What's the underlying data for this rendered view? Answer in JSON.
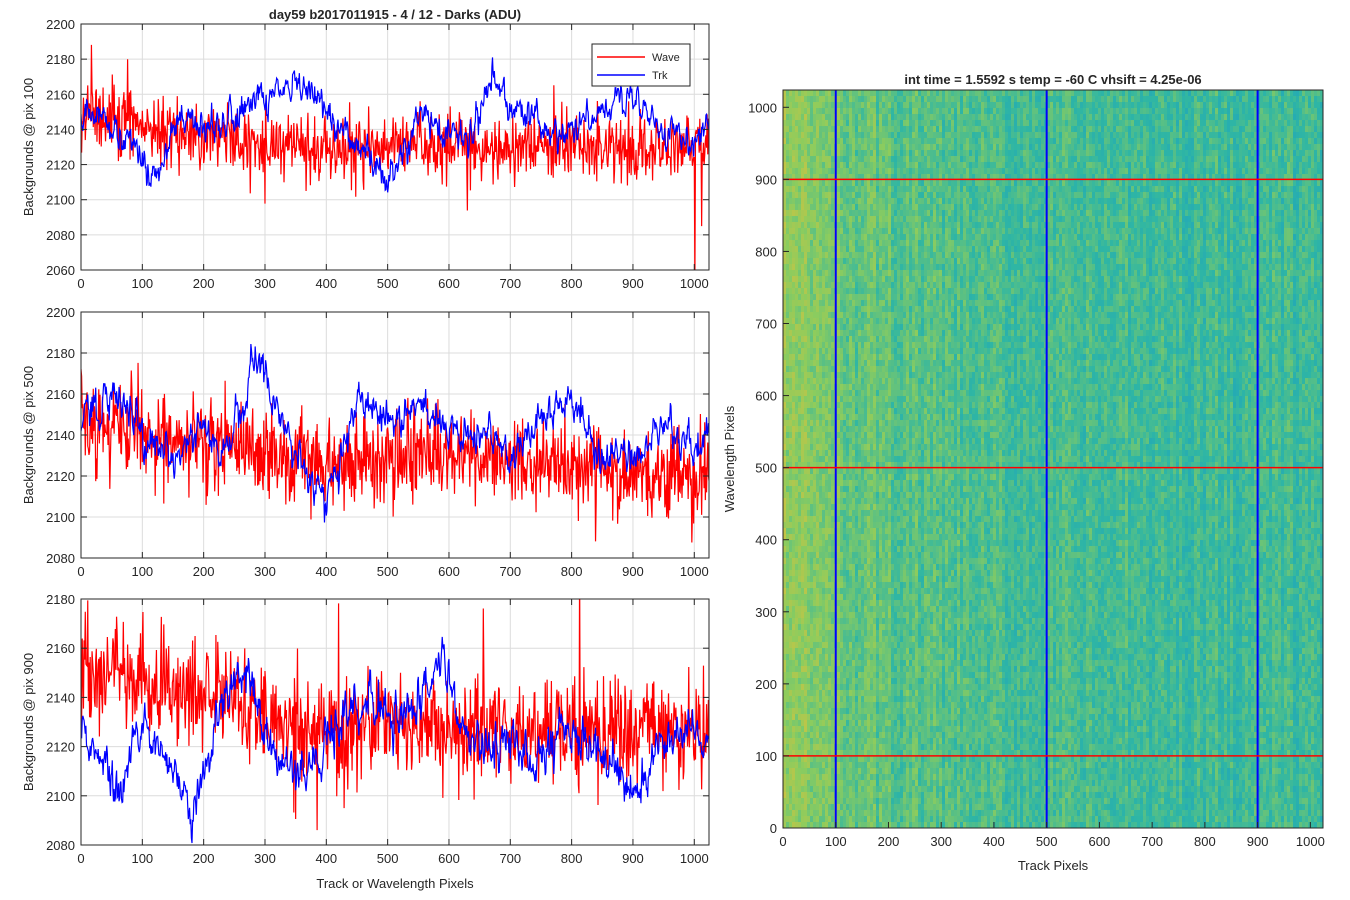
{
  "figure_title": "day59 b2017011915 - 4 / 12 - Darks (ADU)",
  "heatmap_title": "int time = 1.5592 s    temp = -60 C    vhsift = 4.25e-06",
  "colors": {
    "wave": "#ff0000",
    "trk": "#0000ff",
    "grid": "#dcdcdc",
    "axis": "#262626"
  },
  "chart_data": [
    {
      "type": "line",
      "ylabel": "Backgrounds @ pix 100",
      "xlabel": "",
      "xlim": [
        0,
        1024
      ],
      "ylim": [
        2060,
        2200
      ],
      "xticks": [
        0,
        100,
        200,
        300,
        400,
        500,
        600,
        700,
        800,
        900,
        1000
      ],
      "yticks": [
        2060,
        2080,
        2100,
        2120,
        2140,
        2160,
        2180,
        2200
      ],
      "grid": true,
      "legend": {
        "placement": "top-right",
        "entries": [
          "Wave",
          "Trk"
        ]
      },
      "series": [
        {
          "name": "Wave",
          "color": "#ff0000",
          "mean": 2135,
          "noise": 12,
          "anchors": [
            [
              0,
              2150
            ],
            [
              50,
              2148
            ],
            [
              100,
              2142
            ],
            [
              200,
              2136
            ],
            [
              300,
              2132
            ],
            [
              400,
              2128
            ],
            [
              500,
              2130
            ],
            [
              600,
              2132
            ],
            [
              700,
              2130
            ],
            [
              800,
              2132
            ],
            [
              900,
              2130
            ],
            [
              1024,
              2130
            ]
          ]
        },
        {
          "name": "Trk",
          "color": "#0000ff",
          "mean": 2140,
          "noise": 5,
          "anchors": [
            [
              0,
              2150
            ],
            [
              30,
              2145
            ],
            [
              60,
              2140
            ],
            [
              90,
              2130
            ],
            [
              110,
              2112
            ],
            [
              130,
              2122
            ],
            [
              150,
              2143
            ],
            [
              200,
              2140
            ],
            [
              250,
              2146
            ],
            [
              280,
              2158
            ],
            [
              300,
              2155
            ],
            [
              350,
              2165
            ],
            [
              400,
              2150
            ],
            [
              450,
              2132
            ],
            [
              480,
              2120
            ],
            [
              500,
              2108
            ],
            [
              530,
              2130
            ],
            [
              560,
              2148
            ],
            [
              600,
              2135
            ],
            [
              640,
              2140
            ],
            [
              670,
              2172
            ],
            [
              700,
              2152
            ],
            [
              750,
              2140
            ],
            [
              800,
              2138
            ],
            [
              850,
              2150
            ],
            [
              900,
              2158
            ],
            [
              950,
              2140
            ],
            [
              1000,
              2130
            ],
            [
              1024,
              2145
            ]
          ]
        }
      ]
    },
    {
      "type": "line",
      "ylabel": "Backgrounds @ pix 500",
      "xlabel": "",
      "xlim": [
        0,
        1024
      ],
      "ylim": [
        2080,
        2200
      ],
      "xticks": [
        0,
        100,
        200,
        300,
        400,
        500,
        600,
        700,
        800,
        900,
        1000
      ],
      "yticks": [
        2080,
        2100,
        2120,
        2140,
        2160,
        2180,
        2200
      ],
      "grid": true,
      "series": [
        {
          "name": "Wave",
          "color": "#ff0000",
          "mean": 2135,
          "noise": 13,
          "anchors": [
            [
              0,
              2145
            ],
            [
              100,
              2140
            ],
            [
              200,
              2138
            ],
            [
              300,
              2130
            ],
            [
              400,
              2128
            ],
            [
              500,
              2128
            ],
            [
              600,
              2130
            ],
            [
              700,
              2128
            ],
            [
              800,
              2126
            ],
            [
              900,
              2122
            ],
            [
              1024,
              2120
            ]
          ]
        },
        {
          "name": "Trk",
          "color": "#0000ff",
          "mean": 2140,
          "noise": 5,
          "anchors": [
            [
              0,
              2150
            ],
            [
              50,
              2160
            ],
            [
              80,
              2155
            ],
            [
              110,
              2135
            ],
            [
              150,
              2130
            ],
            [
              200,
              2140
            ],
            [
              230,
              2130
            ],
            [
              260,
              2150
            ],
            [
              290,
              2178
            ],
            [
              310,
              2160
            ],
            [
              350,
              2132
            ],
            [
              380,
              2120
            ],
            [
              400,
              2110
            ],
            [
              430,
              2140
            ],
            [
              450,
              2160
            ],
            [
              500,
              2150
            ],
            [
              550,
              2155
            ],
            [
              600,
              2143
            ],
            [
              650,
              2140
            ],
            [
              700,
              2130
            ],
            [
              750,
              2150
            ],
            [
              800,
              2155
            ],
            [
              850,
              2130
            ],
            [
              900,
              2130
            ],
            [
              950,
              2140
            ],
            [
              1000,
              2135
            ],
            [
              1024,
              2140
            ]
          ]
        }
      ]
    },
    {
      "type": "line",
      "ylabel": "Backgrounds @ pix 900",
      "xlabel": "Track or Wavelength Pixels",
      "xlim": [
        0,
        1024
      ],
      "ylim": [
        2080,
        2180
      ],
      "xticks": [
        0,
        100,
        200,
        300,
        400,
        500,
        600,
        700,
        800,
        900,
        1000
      ],
      "yticks": [
        2080,
        2100,
        2120,
        2140,
        2160,
        2180
      ],
      "grid": true,
      "series": [
        {
          "name": "Wave",
          "color": "#ff0000",
          "mean": 2135,
          "noise": 13,
          "anchors": [
            [
              0,
              2150
            ],
            [
              100,
              2145
            ],
            [
              200,
              2140
            ],
            [
              300,
              2132
            ],
            [
              400,
              2128
            ],
            [
              500,
              2130
            ],
            [
              600,
              2128
            ],
            [
              700,
              2126
            ],
            [
              800,
              2125
            ],
            [
              900,
              2125
            ],
            [
              1024,
              2125
            ]
          ]
        },
        {
          "name": "Trk",
          "color": "#0000ff",
          "mean": 2125,
          "noise": 5,
          "anchors": [
            [
              0,
              2125
            ],
            [
              40,
              2112
            ],
            [
              60,
              2100
            ],
            [
              100,
              2128
            ],
            [
              150,
              2110
            ],
            [
              180,
              2095
            ],
            [
              230,
              2135
            ],
            [
              270,
              2150
            ],
            [
              300,
              2125
            ],
            [
              340,
              2110
            ],
            [
              380,
              2115
            ],
            [
              420,
              2130
            ],
            [
              480,
              2140
            ],
            [
              520,
              2130
            ],
            [
              560,
              2140
            ],
            [
              590,
              2155
            ],
            [
              620,
              2130
            ],
            [
              660,
              2118
            ],
            [
              700,
              2128
            ],
            [
              740,
              2110
            ],
            [
              780,
              2130
            ],
            [
              830,
              2120
            ],
            [
              870,
              2112
            ],
            [
              900,
              2100
            ],
            [
              950,
              2122
            ],
            [
              1000,
              2125
            ],
            [
              1024,
              2120
            ]
          ]
        }
      ]
    },
    {
      "type": "heatmap",
      "title": "int time = 1.5592 s    temp = -60 C    vhsift = 4.25e-06",
      "xlabel": "Track Pixels",
      "ylabel": "Wavelength Pixels",
      "xlim": [
        0,
        1024
      ],
      "ylim": [
        0,
        1024
      ],
      "xticks": [
        0,
        100,
        200,
        300,
        400,
        500,
        600,
        700,
        800,
        900,
        1000
      ],
      "yticks": [
        0,
        100,
        200,
        300,
        400,
        500,
        600,
        700,
        800,
        900,
        1000
      ],
      "vertical_lines": [
        100,
        500,
        900
      ],
      "horizontal_lines": [
        100,
        500,
        900
      ],
      "vertical_line_color": "#0000ff",
      "horizontal_line_color": "#ff0000",
      "colormap": [
        "#1a9fc5",
        "#2fb6a4",
        "#8ccc5e",
        "#d9c23c"
      ]
    }
  ]
}
